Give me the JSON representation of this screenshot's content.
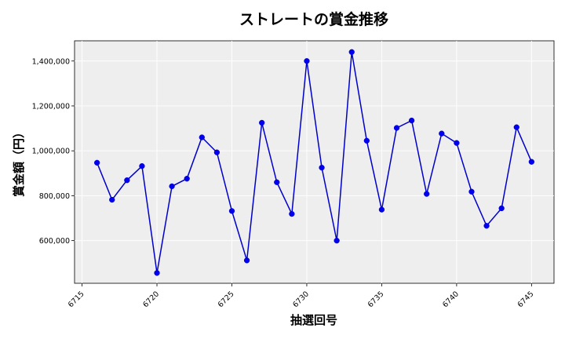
{
  "chart_data": {
    "type": "line",
    "title": "ストレートの賞金推移",
    "xlabel": "抽選回号",
    "ylabel": "賞金額（円）",
    "xlim": [
      6714.5,
      6746.5
    ],
    "ylim": [
      410000,
      1490000
    ],
    "x_ticks": [
      6715,
      6720,
      6725,
      6730,
      6735,
      6740,
      6745
    ],
    "y_ticks": [
      600000,
      800000,
      1000000,
      1200000,
      1400000
    ],
    "y_tick_labels": [
      "600,000",
      "800,000",
      "1,000,000",
      "1,200,000",
      "1,400,000"
    ],
    "grid": true,
    "colors": {
      "line": "#0000cc",
      "marker": "#0000ee",
      "plot_bg": "#eeeeee",
      "grid": "#ffffff"
    },
    "series": [
      {
        "x": [
          6716,
          6717,
          6718,
          6719,
          6720,
          6721,
          6722,
          6723,
          6724,
          6725,
          6726,
          6727,
          6728,
          6729,
          6730,
          6731,
          6732,
          6733,
          6734,
          6735,
          6736,
          6737,
          6738,
          6739,
          6740,
          6741,
          6742,
          6743,
          6744,
          6745
        ],
        "values": [
          947000,
          782000,
          869000,
          932000,
          456000,
          842000,
          876000,
          1060000,
          993000,
          732000,
          512000,
          1125000,
          860000,
          719000,
          1400000,
          925000,
          600000,
          1440000,
          1045000,
          738000,
          1102000,
          1135000,
          808000,
          1077000,
          1035000,
          818000,
          666000,
          744000,
          1105000,
          951000
        ]
      }
    ]
  }
}
